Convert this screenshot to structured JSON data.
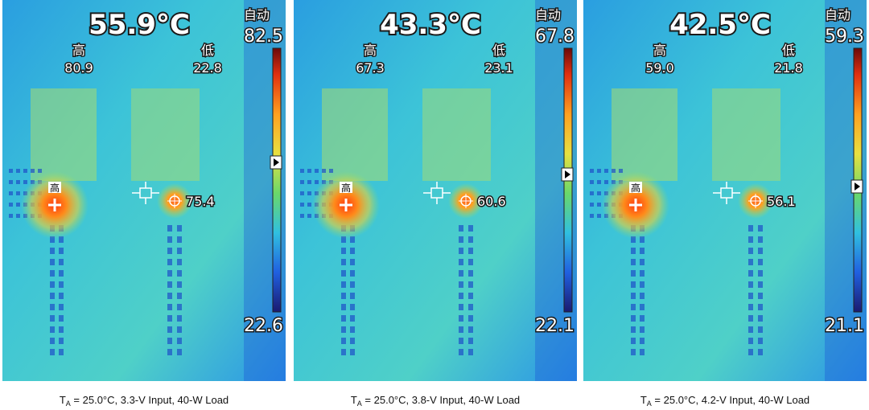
{
  "panels": [
    {
      "center_temp": "55.9°C",
      "mode": "自动",
      "scale_max": "82.5",
      "scale_min": "22.6",
      "high_label": "高",
      "high_value": "80.9",
      "low_label": "低",
      "low_value": "22.8",
      "spot_value": "75.4",
      "caption": {
        "t": "T",
        "sub": "A",
        "rest": " = 25.0°C, 3.3-V Input, 40-W Load"
      }
    },
    {
      "center_temp": "43.3°C",
      "mode": "自动",
      "scale_max": "67.8",
      "scale_min": "22.1",
      "high_label": "高",
      "high_value": "67.3",
      "low_label": "低",
      "low_value": "23.1",
      "spot_value": "60.6",
      "caption": {
        "t": "T",
        "sub": "A",
        "rest": " = 25.0°C, 3.8-V Input, 40-W Load"
      }
    },
    {
      "center_temp": "42.5°C",
      "mode": "自动",
      "scale_max": "59.3",
      "scale_min": "21.1",
      "high_label": "高",
      "high_value": "59.0",
      "low_label": "低",
      "low_value": "21.8",
      "spot_value": "56.1",
      "caption": {
        "t": "T",
        "sub": "A",
        "rest": " = 25.0°C, 4.2-V Input, 40-W Load"
      }
    }
  ]
}
